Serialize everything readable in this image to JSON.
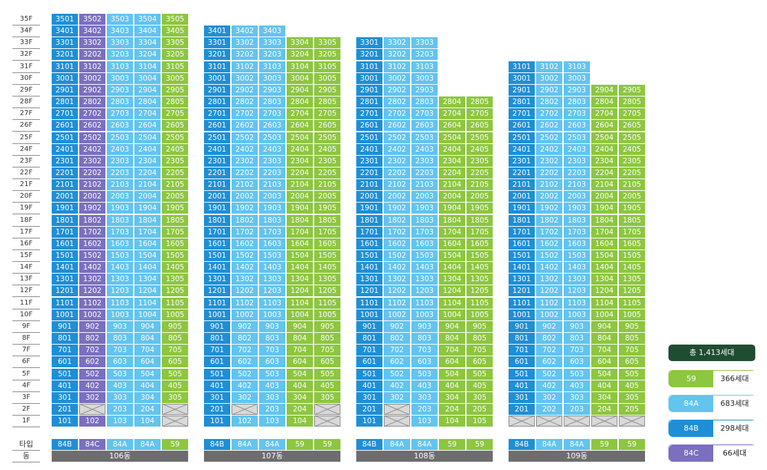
{
  "floors": [
    "35F",
    "34F",
    "33F",
    "32F",
    "31F",
    "30F",
    "29F",
    "28F",
    "27F",
    "26F",
    "25F",
    "24F",
    "23F",
    "22F",
    "21F",
    "20F",
    "19F",
    "18F",
    "17F",
    "16F",
    "15F",
    "14F",
    "13F",
    "12F",
    "11F",
    "10F",
    "9F",
    "8F",
    "7F",
    "6F",
    "5F",
    "4F",
    "3F",
    "2F",
    "1F"
  ],
  "row_labels": {
    "type": "타입",
    "building": "동"
  },
  "colors": {
    "59": "#8dc63f",
    "84A": "#62c4ef",
    "84B": "#1e8fd6",
    "84C": "#7b6fbf",
    "empty": "#d9d9d9",
    "bldg": "#6d6d6d",
    "total": "#1f4d32"
  },
  "buildings": [
    {
      "name": "106동",
      "types": [
        "84B",
        "84C",
        "84A",
        "84A",
        "59"
      ],
      "columns": [
        {
          "lines": "01",
          "top": 35,
          "empty_floors": []
        },
        {
          "lines": "02",
          "top": 35,
          "empty_floors": [
            2
          ]
        },
        {
          "lines": "03",
          "top": 35,
          "empty_floors": []
        },
        {
          "lines": "04",
          "top": 35,
          "empty_floors": []
        },
        {
          "lines": "05",
          "top": 35,
          "empty_floors": [
            2,
            1
          ]
        }
      ]
    },
    {
      "name": "107동",
      "types": [
        "84B",
        "84A",
        "84A",
        "59",
        "59"
      ],
      "columns": [
        {
          "lines": "01",
          "top": 34,
          "empty_floors": []
        },
        {
          "lines": "02",
          "top": 34,
          "empty_floors": [
            2
          ]
        },
        {
          "lines": "03",
          "top": 34,
          "empty_floors": []
        },
        {
          "lines": "04",
          "top": 33,
          "empty_floors": []
        },
        {
          "lines": "05",
          "top": 33,
          "empty_floors": [
            2,
            1
          ]
        }
      ]
    },
    {
      "name": "108동",
      "types": [
        "84B",
        "84A",
        "84A",
        "59",
        "59"
      ],
      "columns": [
        {
          "lines": "01",
          "top": 33,
          "empty_floors": []
        },
        {
          "lines": "02",
          "top": 33,
          "empty_floors": [
            2,
            1
          ]
        },
        {
          "lines": "03",
          "top": 33,
          "empty_floors": []
        },
        {
          "lines": "04",
          "top": 28,
          "empty_floors": []
        },
        {
          "lines": "05",
          "top": 28,
          "empty_floors": []
        }
      ]
    },
    {
      "name": "109동",
      "types": [
        "84B",
        "84A",
        "84A",
        "59",
        "59"
      ],
      "columns": [
        {
          "lines": "01",
          "top": 31,
          "empty_floors": [
            1
          ]
        },
        {
          "lines": "02",
          "top": 31,
          "empty_floors": [
            1
          ]
        },
        {
          "lines": "03",
          "top": 31,
          "empty_floors": [
            1
          ]
        },
        {
          "lines": "04",
          "top": 29,
          "empty_floors": [
            1
          ]
        },
        {
          "lines": "05",
          "top": 29,
          "empty_floors": [
            1
          ]
        }
      ]
    }
  ],
  "legend": {
    "total": "총 1,413세대",
    "items": [
      {
        "type": "59",
        "count": "366세대"
      },
      {
        "type": "84A",
        "count": "683세대"
      },
      {
        "type": "84B",
        "count": "298세대"
      },
      {
        "type": "84C",
        "count": "66세대"
      }
    ]
  }
}
